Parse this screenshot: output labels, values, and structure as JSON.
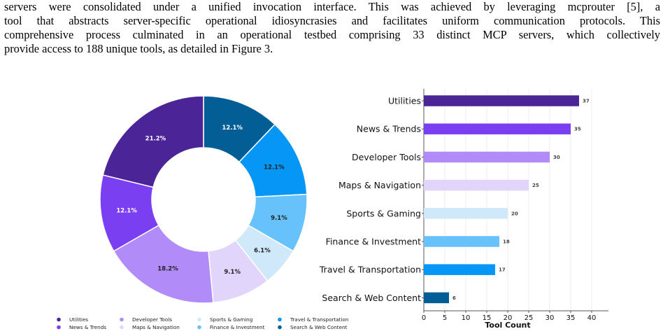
{
  "paragraph": {
    "lines": [
      "servers were consolidated under a unified invocation interface. This was achieved by leveraging mcprouter [5], a",
      "tool that abstracts server-specific operational idiosyncrasies and facilitates uniform communication protocols. This",
      "comprehensive process culminated in an operational testbed comprising 33 distinct MCP servers, which collectively",
      "provide access to 188 unique tools, as detailed in Figure 3."
    ]
  },
  "chart_data": [
    {
      "type": "pie",
      "style": "donut",
      "unit": "%",
      "slices": [
        {
          "label": "Utilities",
          "value": 21.2,
          "color": "#4b2597"
        },
        {
          "label": "News & Trends",
          "value": 12.1,
          "color": "#7b3ff2"
        },
        {
          "label": "Developer Tools",
          "value": 18.2,
          "color": "#b18cf8"
        },
        {
          "label": "Maps & Navigation",
          "value": 9.1,
          "color": "#e2d5fb"
        },
        {
          "label": "Sports & Gaming",
          "value": 6.1,
          "color": "#cfe9fb"
        },
        {
          "label": "Finance & Investment",
          "value": 9.1,
          "color": "#67c1fa"
        },
        {
          "label": "Travel & Transportation",
          "value": 12.1,
          "color": "#0596f6"
        },
        {
          "label": "Search & Web Content",
          "value": 12.1,
          "color": "#045e96"
        }
      ],
      "legend": {
        "position": "bottom",
        "columns": [
          [
            "Utilities",
            "News & Trends"
          ],
          [
            "Developer Tools",
            "Maps & Navigation"
          ],
          [
            "Sports & Gaming",
            "Finance & Investment"
          ],
          [
            "Travel & Transportation",
            "Search & Web Content"
          ]
        ]
      }
    },
    {
      "type": "bar",
      "orientation": "horizontal",
      "categories": [
        "Utilities",
        "News & Trends",
        "Developer Tools",
        "Maps & Navigation",
        "Sports & Gaming",
        "Finance & Investment",
        "Travel & Transportation",
        "Search & Web Content"
      ],
      "values": [
        37,
        35,
        30,
        25,
        20,
        18,
        17,
        6
      ],
      "colors": [
        "#4b2597",
        "#7b3ff2",
        "#b18cf8",
        "#e2d5fb",
        "#cfe9fb",
        "#67c1fa",
        "#0596f6",
        "#045e96"
      ],
      "xlabel": "Tool Count",
      "ylabel": "",
      "xlim": [
        0,
        44
      ],
      "xticks": [
        0,
        5,
        10,
        15,
        20,
        25,
        30,
        35,
        40
      ],
      "grid": "vertical"
    }
  ]
}
